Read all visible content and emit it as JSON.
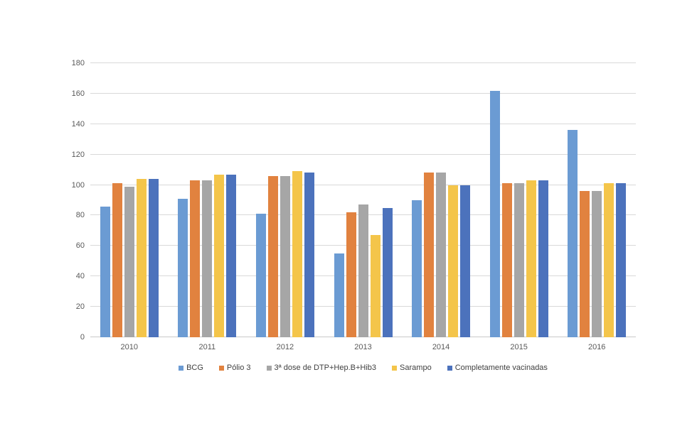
{
  "chart_data": {
    "type": "bar",
    "title": "",
    "categories": [
      "2010",
      "2011",
      "2012",
      "2013",
      "2014",
      "2015",
      "2016"
    ],
    "series": [
      {
        "name": "BCG",
        "color": "#6B9BD3",
        "values": [
          86,
          91,
          81,
          55,
          90,
          162,
          136
        ]
      },
      {
        "name": "Pólio 3",
        "color": "#E1823F",
        "values": [
          101,
          103,
          106,
          82,
          108,
          101,
          96
        ]
      },
      {
        "name": "3ª dose de DTP+Hep.B+Hib3",
        "color": "#A6A6A6",
        "values": [
          99,
          103,
          106,
          87,
          108,
          101,
          96
        ]
      },
      {
        "name": "Sarampo",
        "color": "#F4C54A",
        "values": [
          104,
          107,
          109,
          67,
          100,
          103,
          101
        ]
      },
      {
        "name": "Completamente vacinadas",
        "color": "#4C72BC",
        "values": [
          104,
          107,
          108,
          85,
          100,
          103,
          101
        ]
      }
    ],
    "xlabel": "",
    "ylabel": "",
    "ylim": [
      0,
      180
    ],
    "yticks": [
      0,
      20,
      40,
      60,
      80,
      100,
      120,
      140,
      160,
      180
    ],
    "grid": true,
    "legend_position": "bottom",
    "colors": {
      "gridline": "#d9d9d9",
      "axis_line": "#c9c9c9",
      "tick_text": "#595959",
      "legend_text": "#404040",
      "background": "#ffffff"
    }
  }
}
